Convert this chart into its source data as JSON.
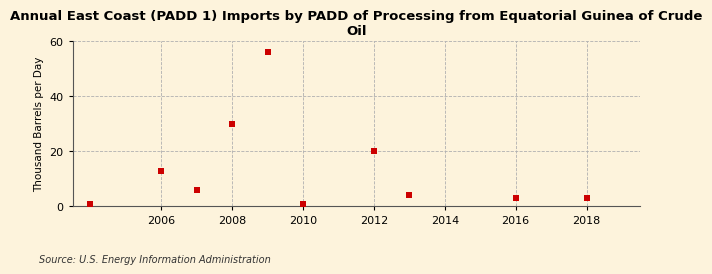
{
  "title": "Annual East Coast (PADD 1) Imports by PADD of Processing from Equatorial Guinea of Crude\nOil",
  "ylabel": "Thousand Barrels per Day",
  "source": "Source: U.S. Energy Information Administration",
  "x_data": [
    2004,
    2006,
    2007,
    2008,
    2009,
    2010,
    2012,
    2013,
    2016,
    2018
  ],
  "y_data": [
    1,
    13,
    6,
    30,
    56,
    1,
    20,
    4,
    3,
    3
  ],
  "marker_color": "#cc0000",
  "marker_size": 4,
  "marker_shape": "s",
  "xlim": [
    2003.5,
    2019.5
  ],
  "ylim": [
    0,
    60
  ],
  "yticks": [
    0,
    20,
    40,
    60
  ],
  "xticks": [
    2006,
    2008,
    2010,
    2012,
    2014,
    2016,
    2018
  ],
  "background_color": "#fdf3dc",
  "grid_color": "#b0b0b0",
  "title_fontsize": 9.5,
  "label_fontsize": 7.5,
  "tick_fontsize": 8,
  "source_fontsize": 7
}
